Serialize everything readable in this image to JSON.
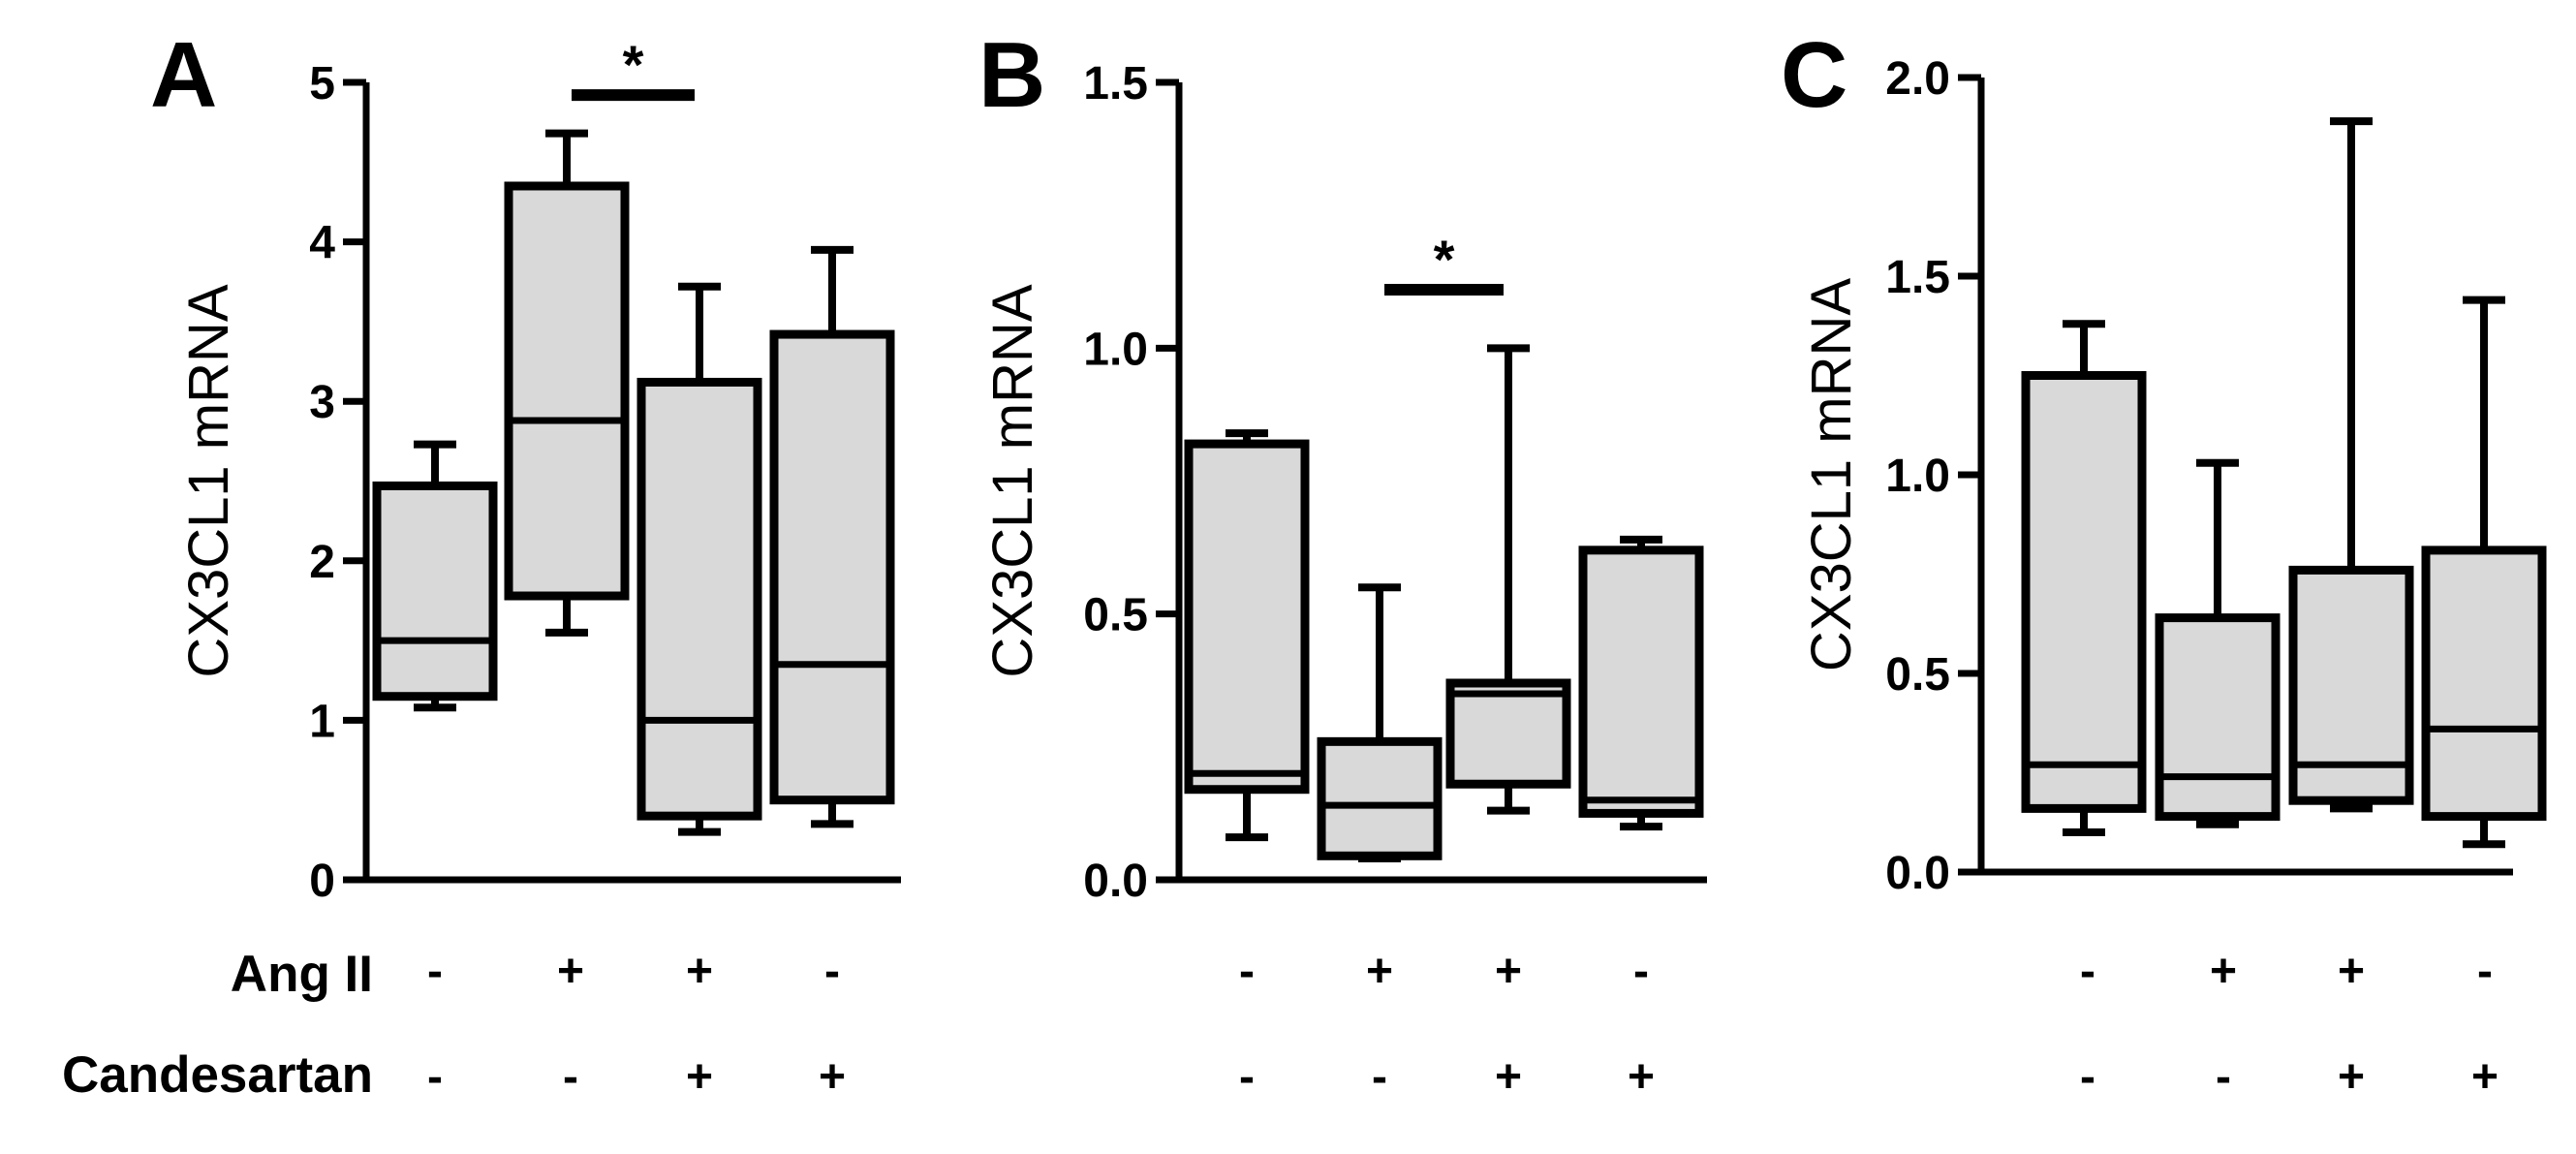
{
  "figure": {
    "row_labels": [
      "Ang II",
      "Candesartan"
    ]
  },
  "chart_data": [
    {
      "type": "box",
      "panel": "A",
      "ylabel": "CX3CL1 mRNA",
      "ylim": [
        0,
        5
      ],
      "yticks": [
        0,
        1,
        2,
        3,
        4,
        5
      ],
      "ytick_labels": [
        "0",
        "1",
        "2",
        "3",
        "4",
        "5"
      ],
      "groups": [
        {
          "ang_ii": "-",
          "candesartan": "-",
          "min": 1.08,
          "q1": 1.15,
          "median": 1.5,
          "q3": 2.47,
          "max": 2.73
        },
        {
          "ang_ii": "+",
          "candesartan": "-",
          "min": 1.55,
          "q1": 1.78,
          "median": 2.88,
          "q3": 4.35,
          "max": 4.68
        },
        {
          "ang_ii": "+",
          "candesartan": "+",
          "min": 0.3,
          "q1": 0.4,
          "median": 1.0,
          "q3": 3.12,
          "max": 3.72
        },
        {
          "ang_ii": "-",
          "candesartan": "+",
          "min": 0.35,
          "q1": 0.5,
          "median": 1.35,
          "q3": 3.42,
          "max": 3.95
        }
      ],
      "significance": [
        {
          "from": 1,
          "to": 2,
          "y": 4.92,
          "label": "*"
        }
      ]
    },
    {
      "type": "box",
      "panel": "B",
      "ylabel": "CX3CL1 mRNA",
      "ylim": [
        0,
        1.5
      ],
      "yticks": [
        0,
        0.5,
        1.0,
        1.5
      ],
      "ytick_labels": [
        "0.0",
        "0.5",
        "1.0",
        "1.5"
      ],
      "groups": [
        {
          "ang_ii": "-",
          "candesartan": "-",
          "min": 0.08,
          "q1": 0.17,
          "median": 0.2,
          "q3": 0.82,
          "max": 0.84
        },
        {
          "ang_ii": "+",
          "candesartan": "-",
          "min": 0.04,
          "q1": 0.045,
          "median": 0.14,
          "q3": 0.26,
          "max": 0.55
        },
        {
          "ang_ii": "+",
          "candesartan": "+",
          "min": 0.13,
          "q1": 0.18,
          "median": 0.35,
          "q3": 0.37,
          "max": 1.0
        },
        {
          "ang_ii": "-",
          "candesartan": "+",
          "min": 0.1,
          "q1": 0.125,
          "median": 0.15,
          "q3": 0.62,
          "max": 0.64
        }
      ],
      "significance": [
        {
          "from": 1,
          "to": 2,
          "y": 1.11,
          "label": "*"
        }
      ]
    },
    {
      "type": "box",
      "panel": "C",
      "ylabel": "CX3CL1 mRNA",
      "ylim": [
        0,
        2.0
      ],
      "yticks": [
        0,
        0.5,
        1.0,
        1.5,
        2.0
      ],
      "ytick_labels": [
        "0.0",
        "0.5",
        "1.0",
        "1.5",
        "2.0"
      ],
      "groups": [
        {
          "ang_ii": "-",
          "candesartan": "-",
          "min": 0.1,
          "q1": 0.16,
          "median": 0.27,
          "q3": 1.25,
          "max": 1.38
        },
        {
          "ang_ii": "+",
          "candesartan": "-",
          "min": 0.12,
          "q1": 0.14,
          "median": 0.24,
          "q3": 0.64,
          "max": 1.03
        },
        {
          "ang_ii": "+",
          "candesartan": "+",
          "min": 0.16,
          "q1": 0.18,
          "median": 0.27,
          "q3": 0.76,
          "max": 1.89
        },
        {
          "ang_ii": "-",
          "candesartan": "+",
          "min": 0.07,
          "q1": 0.14,
          "median": 0.36,
          "q3": 0.81,
          "max": 1.44
        }
      ],
      "significance": []
    }
  ],
  "colors": {
    "box_fill": "#d9d9d9",
    "stroke": "#000000",
    "background": "#ffffff"
  }
}
